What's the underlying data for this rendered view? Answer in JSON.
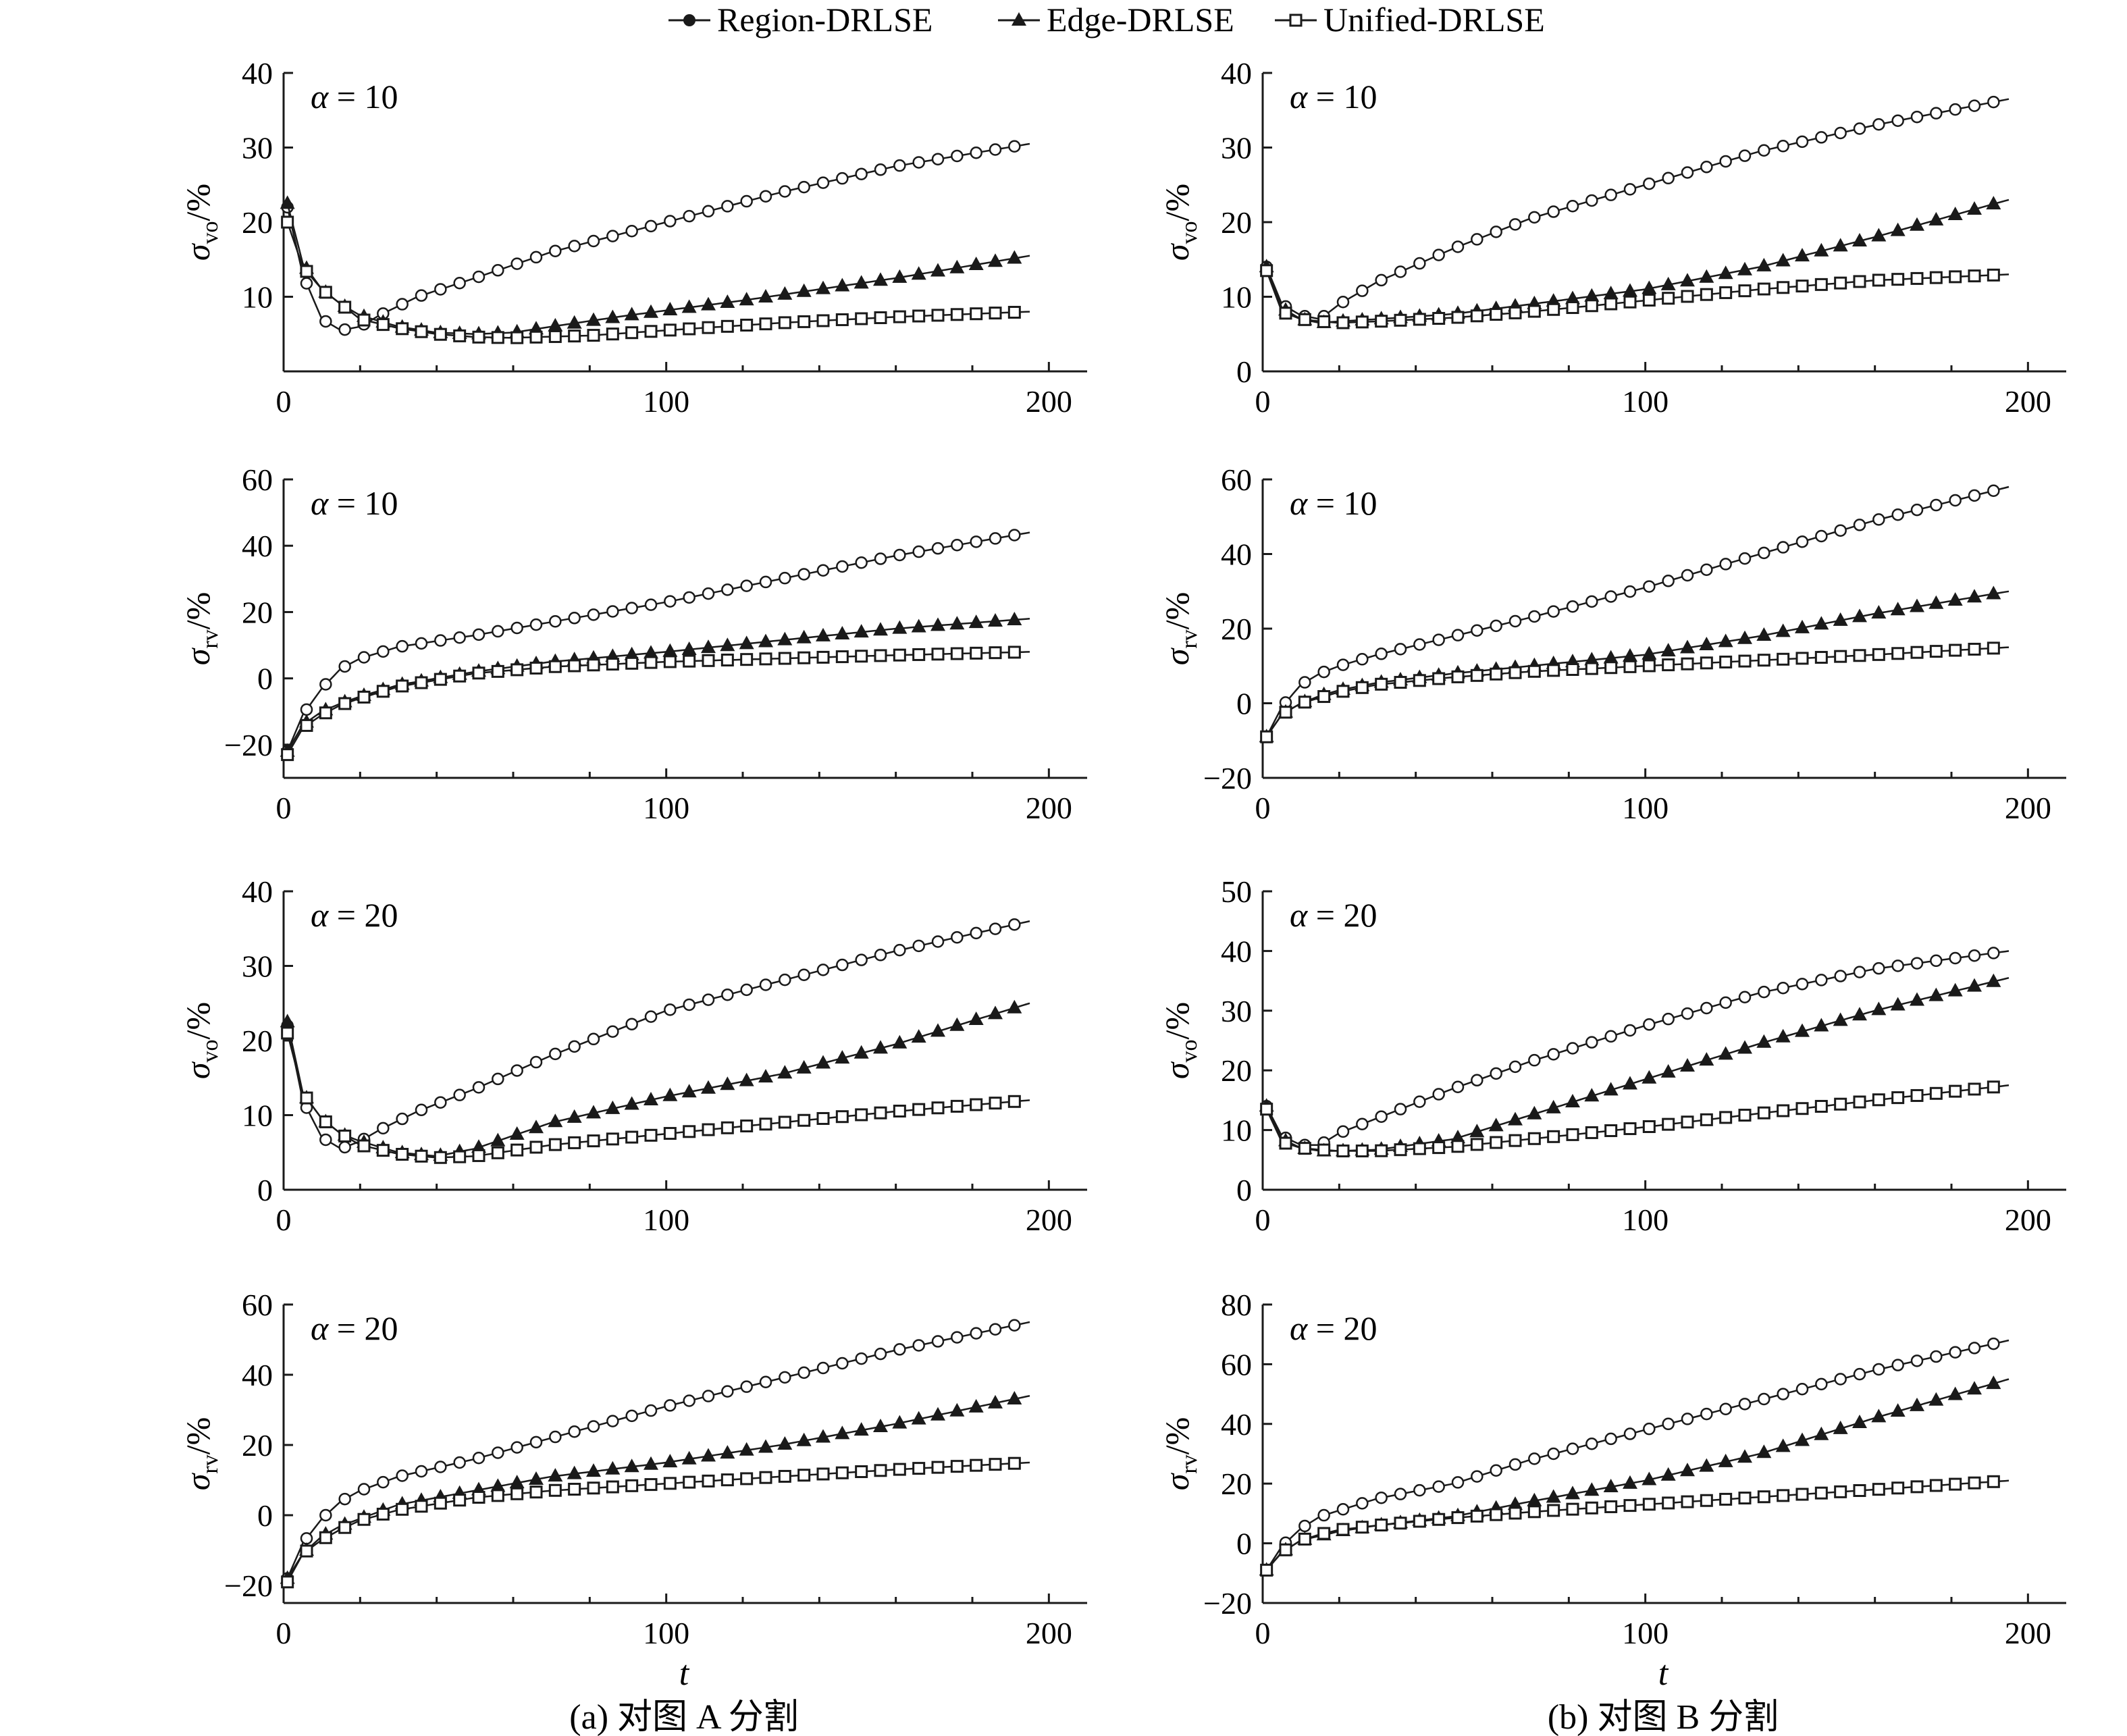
{
  "legend": [
    {
      "label": "Region-DRLSE",
      "marker": "circle"
    },
    {
      "label": "Edge-DRLSE",
      "marker": "triangle"
    },
    {
      "label": "Unified-DRLSE",
      "marker": "square"
    }
  ],
  "captions": {
    "left": "(a) 对图 A 分割",
    "right": "(b) 对图 B 分割"
  },
  "x_axis_label": "t",
  "chart_data": [
    {
      "type": "line",
      "column": "a",
      "row": 1,
      "annotation": {
        "symbol": "α",
        "value": "= 10"
      },
      "ylabel": {
        "base": "σ",
        "sub": "vo",
        "unit": "/%"
      },
      "xlim": [
        0,
        210
      ],
      "ylim": [
        0,
        40
      ],
      "xticks": [
        0,
        100,
        200
      ],
      "yticks": [
        10,
        20,
        30,
        40
      ],
      "series": [
        {
          "name": "Region-DRLSE",
          "marker": "circle",
          "x": [
            1,
            5,
            10,
            15,
            20,
            25,
            35,
            50,
            70,
            100,
            130,
            160,
            195
          ],
          "y": [
            22,
            13,
            7,
            5.5,
            6,
            7.5,
            10,
            12.5,
            16,
            20,
            24,
            27.5,
            30.5
          ]
        },
        {
          "name": "Edge-DRLSE",
          "marker": "triangle",
          "x": [
            1,
            5,
            10,
            15,
            20,
            30,
            40,
            50,
            60,
            70,
            90,
            120,
            160,
            195
          ],
          "y": [
            22.5,
            14.5,
            11,
            9,
            7.5,
            6,
            5.2,
            5,
            5.2,
            6,
            7.5,
            9.5,
            12.5,
            15.5
          ]
        },
        {
          "name": "Unified-DRLSE",
          "marker": "square",
          "x": [
            1,
            5,
            10,
            15,
            20,
            30,
            40,
            50,
            60,
            80,
            100,
            130,
            160,
            195
          ],
          "y": [
            20,
            14,
            11,
            9,
            7,
            5.8,
            5,
            4.6,
            4.5,
            4.8,
            5.5,
            6.5,
            7.3,
            8
          ]
        }
      ]
    },
    {
      "type": "line",
      "column": "b",
      "row": 1,
      "annotation": {
        "symbol": "α",
        "value": "= 10"
      },
      "ylabel": {
        "base": "σ",
        "sub": "vo",
        "unit": "/%"
      },
      "xlim": [
        0,
        210
      ],
      "ylim": [
        0,
        40
      ],
      "xticks": [
        0,
        100,
        200
      ],
      "yticks": [
        0,
        10,
        20,
        30,
        40
      ],
      "series": [
        {
          "name": "Region-DRLSE",
          "marker": "circle",
          "x": [
            1,
            5,
            10,
            15,
            20,
            30,
            50,
            70,
            100,
            130,
            160,
            195
          ],
          "y": [
            14,
            9,
            7.5,
            7,
            9,
            12,
            16.5,
            20.5,
            25,
            29.5,
            33,
            36.5
          ]
        },
        {
          "name": "Edge-DRLSE",
          "marker": "triangle",
          "x": [
            1,
            5,
            10,
            15,
            20,
            30,
            50,
            70,
            100,
            130,
            160,
            195
          ],
          "y": [
            14,
            8.5,
            7,
            6.5,
            6.7,
            7,
            7.7,
            9,
            11,
            14,
            18,
            23
          ]
        },
        {
          "name": "Unified-DRLSE",
          "marker": "square",
          "x": [
            1,
            5,
            10,
            15,
            20,
            30,
            50,
            70,
            100,
            130,
            160,
            195
          ],
          "y": [
            13.5,
            8,
            7,
            6.7,
            6.5,
            6.7,
            7.2,
            8,
            9.5,
            11,
            12.2,
            13
          ]
        }
      ]
    },
    {
      "type": "line",
      "column": "a",
      "row": 2,
      "annotation": {
        "symbol": "α",
        "value": "= 10"
      },
      "ylabel": {
        "base": "σ",
        "sub": "rv",
        "unit": "/%"
      },
      "xlim": [
        0,
        210
      ],
      "ylim": [
        -30,
        60
      ],
      "xticks": [
        0,
        100,
        200
      ],
      "yticks": [
        -20,
        0,
        20,
        40,
        60
      ],
      "series": [
        {
          "name": "Region-DRLSE",
          "marker": "circle",
          "x": [
            1,
            5,
            10,
            15,
            20,
            30,
            50,
            70,
            100,
            130,
            160,
            195
          ],
          "y": [
            -22,
            -11,
            -3,
            3,
            6,
            9.5,
            13,
            17,
            23,
            30,
            37,
            44
          ]
        },
        {
          "name": "Edge-DRLSE",
          "marker": "triangle",
          "x": [
            1,
            5,
            10,
            15,
            20,
            30,
            50,
            70,
            100,
            130,
            160,
            195
          ],
          "y": [
            -22,
            -14,
            -10,
            -7.5,
            -5.5,
            -2,
            2,
            5,
            8,
            11.5,
            15,
            18
          ]
        },
        {
          "name": "Unified-DRLSE",
          "marker": "square",
          "x": [
            1,
            5,
            10,
            15,
            20,
            30,
            50,
            70,
            100,
            130,
            160,
            195
          ],
          "y": [
            -23,
            -15,
            -11,
            -8,
            -6,
            -2.5,
            1.5,
            3.5,
            5,
            6,
            7,
            8
          ]
        }
      ]
    },
    {
      "type": "line",
      "column": "b",
      "row": 2,
      "annotation": {
        "symbol": "α",
        "value": "= 10"
      },
      "ylabel": {
        "base": "σ",
        "sub": "rv",
        "unit": "/%"
      },
      "xlim": [
        0,
        210
      ],
      "ylim": [
        -20,
        60
      ],
      "xticks": [
        0,
        100,
        200
      ],
      "yticks": [
        -20,
        0,
        20,
        40,
        60
      ],
      "series": [
        {
          "name": "Region-DRLSE",
          "marker": "circle",
          "x": [
            1,
            5,
            10,
            15,
            20,
            30,
            50,
            70,
            100,
            130,
            160,
            195
          ],
          "y": [
            -9,
            -1,
            5,
            8,
            10,
            13,
            18,
            23,
            31,
            40,
            49,
            58
          ]
        },
        {
          "name": "Edge-DRLSE",
          "marker": "triangle",
          "x": [
            1,
            5,
            10,
            15,
            20,
            30,
            50,
            70,
            100,
            130,
            160,
            195
          ],
          "y": [
            -9,
            -3,
            0,
            2,
            3.5,
            5.5,
            8,
            10,
            13,
            18,
            24,
            30
          ]
        },
        {
          "name": "Unified-DRLSE",
          "marker": "square",
          "x": [
            1,
            5,
            10,
            15,
            20,
            30,
            50,
            70,
            100,
            130,
            160,
            195
          ],
          "y": [
            -9,
            -3,
            0,
            1.5,
            3,
            5,
            7,
            8.5,
            10,
            11.5,
            13,
            15
          ]
        }
      ]
    },
    {
      "type": "line",
      "column": "a",
      "row": 3,
      "annotation": {
        "symbol": "α",
        "value": "= 20"
      },
      "ylabel": {
        "base": "σ",
        "sub": "vo",
        "unit": "/%"
      },
      "xlim": [
        0,
        210
      ],
      "ylim": [
        0,
        40
      ],
      "xticks": [
        0,
        100,
        200
      ],
      "yticks": [
        0,
        10,
        20,
        30,
        40
      ],
      "series": [
        {
          "name": "Region-DRLSE",
          "marker": "circle",
          "x": [
            1,
            5,
            10,
            15,
            20,
            25,
            35,
            50,
            70,
            90,
            100,
            130,
            160,
            195
          ],
          "y": [
            22,
            12,
            7,
            5.5,
            6.5,
            8,
            10.5,
            13.5,
            18,
            22,
            24,
            28,
            32,
            36
          ]
        },
        {
          "name": "Edge-DRLSE",
          "marker": "triangle",
          "x": [
            1,
            5,
            10,
            15,
            20,
            30,
            40,
            50,
            70,
            100,
            130,
            160,
            195
          ],
          "y": [
            22.5,
            13,
            9.5,
            7.5,
            6.5,
            5,
            4.5,
            5.5,
            9,
            12.5,
            15.5,
            19.5,
            25
          ]
        },
        {
          "name": "Unified-DRLSE",
          "marker": "square",
          "x": [
            1,
            5,
            10,
            15,
            20,
            30,
            40,
            50,
            70,
            100,
            130,
            160,
            195
          ],
          "y": [
            21,
            13,
            9.5,
            7.5,
            6,
            4.8,
            4.3,
            4.5,
            6,
            7.5,
            9,
            10.5,
            12
          ]
        }
      ]
    },
    {
      "type": "line",
      "column": "b",
      "row": 3,
      "annotation": {
        "symbol": "α",
        "value": "= 20"
      },
      "ylabel": {
        "base": "σ",
        "sub": "vo",
        "unit": "/%"
      },
      "xlim": [
        0,
        210
      ],
      "ylim": [
        0,
        50
      ],
      "xticks": [
        0,
        100,
        200
      ],
      "yticks": [
        0,
        10,
        20,
        30,
        40,
        50
      ],
      "series": [
        {
          "name": "Region-DRLSE",
          "marker": "circle",
          "x": [
            1,
            5,
            10,
            15,
            20,
            30,
            50,
            70,
            100,
            130,
            160,
            195
          ],
          "y": [
            14,
            9,
            7.5,
            7.5,
            9.5,
            12,
            17,
            21.5,
            27.5,
            33,
            37,
            40
          ]
        },
        {
          "name": "Edge-DRLSE",
          "marker": "triangle",
          "x": [
            1,
            5,
            10,
            15,
            20,
            30,
            50,
            70,
            100,
            130,
            160,
            195
          ],
          "y": [
            14,
            8.5,
            7,
            6.5,
            6.5,
            6.7,
            8.5,
            12.5,
            18.5,
            24.5,
            30,
            35.5
          ]
        },
        {
          "name": "Unified-DRLSE",
          "marker": "square",
          "x": [
            1,
            5,
            10,
            15,
            20,
            30,
            50,
            70,
            100,
            130,
            160,
            195
          ],
          "y": [
            13.5,
            8,
            7,
            6.7,
            6.5,
            6.5,
            7.2,
            8.5,
            10.5,
            12.8,
            15,
            17.5
          ]
        }
      ]
    },
    {
      "type": "line",
      "column": "a",
      "row": 4,
      "annotation": {
        "symbol": "α",
        "value": "= 20"
      },
      "ylabel": {
        "base": "σ",
        "sub": "rv",
        "unit": "/%"
      },
      "xlim": [
        0,
        210
      ],
      "ylim": [
        -25,
        60
      ],
      "xticks": [
        0,
        100,
        200
      ],
      "yticks": [
        -20,
        0,
        20,
        40,
        60
      ],
      "series": [
        {
          "name": "Region-DRLSE",
          "marker": "circle",
          "x": [
            1,
            5,
            10,
            15,
            20,
            30,
            50,
            70,
            100,
            130,
            160,
            195
          ],
          "y": [
            -18,
            -8,
            -1,
            4,
            7,
            11,
            16,
            22,
            31,
            39,
            47,
            55
          ]
        },
        {
          "name": "Edge-DRLSE",
          "marker": "triangle",
          "x": [
            1,
            5,
            10,
            15,
            20,
            30,
            50,
            70,
            100,
            130,
            160,
            195
          ],
          "y": [
            -18,
            -11,
            -6,
            -3,
            -1,
            3,
            7,
            11,
            15,
            20,
            26,
            34
          ]
        },
        {
          "name": "Unified-DRLSE",
          "marker": "square",
          "x": [
            1,
            5,
            10,
            15,
            20,
            30,
            50,
            70,
            100,
            130,
            160,
            195
          ],
          "y": [
            -19,
            -11,
            -7,
            -4,
            -1.5,
            1.5,
            5,
            7,
            9,
            11,
            13,
            15
          ]
        }
      ]
    },
    {
      "type": "line",
      "column": "b",
      "row": 4,
      "annotation": {
        "symbol": "α",
        "value": "= 20"
      },
      "ylabel": {
        "base": "σ",
        "sub": "rv",
        "unit": "/%"
      },
      "xlim": [
        0,
        210
      ],
      "ylim": [
        -20,
        80
      ],
      "xticks": [
        0,
        100,
        200
      ],
      "yticks": [
        -20,
        0,
        20,
        40,
        60,
        80
      ],
      "series": [
        {
          "name": "Region-DRLSE",
          "marker": "circle",
          "x": [
            1,
            5,
            10,
            15,
            20,
            30,
            50,
            70,
            100,
            130,
            160,
            195
          ],
          "y": [
            -9,
            -1,
            5,
            9,
            11,
            15,
            20,
            28,
            38,
            48,
            58,
            68
          ]
        },
        {
          "name": "Edge-DRLSE",
          "marker": "triangle",
          "x": [
            1,
            5,
            10,
            15,
            20,
            30,
            50,
            70,
            100,
            130,
            160,
            195
          ],
          "y": [
            -9,
            -3,
            1,
            2.5,
            4,
            6,
            9,
            14,
            21,
            30,
            42,
            55
          ]
        },
        {
          "name": "Unified-DRLSE",
          "marker": "square",
          "x": [
            1,
            5,
            10,
            15,
            20,
            30,
            50,
            70,
            100,
            130,
            160,
            195
          ],
          "y": [
            -9,
            -3,
            1,
            3,
            4.5,
            6,
            8.5,
            10.5,
            13,
            15.5,
            18,
            21
          ]
        }
      ]
    }
  ]
}
